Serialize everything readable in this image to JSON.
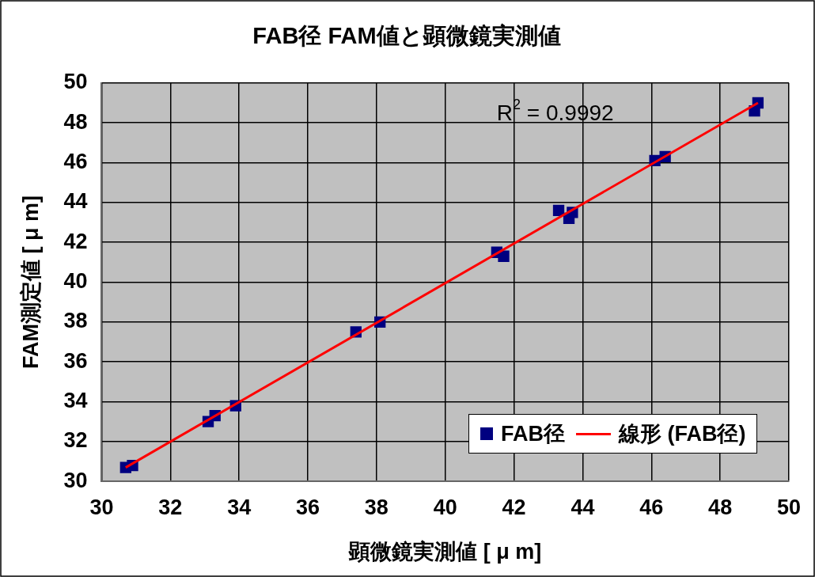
{
  "chart_data": {
    "type": "scatter",
    "title": "FAB径 FAM値と顕微鏡実測値",
    "xlabel": "顕微鏡実測値 [ μ m]",
    "ylabel": "FAM測定値 [ μ m]",
    "xlim": [
      30,
      50
    ],
    "ylim": [
      30,
      50
    ],
    "xticks": [
      30,
      32,
      34,
      36,
      38,
      40,
      42,
      44,
      46,
      48,
      50
    ],
    "yticks": [
      30,
      32,
      34,
      36,
      38,
      40,
      42,
      44,
      46,
      48,
      50
    ],
    "grid": true,
    "legend": "bottom right",
    "marker": "square",
    "annotations": [
      "R$^{2}$ = 0.9992"
    ],
    "series": [
      {
        "name": "FAB径",
        "color": "#000080",
        "x": [
          30.7,
          30.9,
          33.1,
          33.3,
          33.9,
          37.4,
          38.1,
          41.5,
          41.7,
          43.3,
          43.6,
          43.7,
          46.1,
          46.4,
          49.0,
          49.1
        ],
        "values": [
          30.7,
          30.8,
          33.0,
          33.3,
          33.8,
          37.5,
          38.0,
          41.5,
          41.3,
          43.6,
          43.2,
          43.5,
          46.1,
          46.3,
          48.6,
          49.0
        ]
      },
      {
        "name": "線形 (FAB径)",
        "type": "line",
        "color": "#ff0000",
        "marker": "none",
        "line_style": "solid",
        "x": [
          30.7,
          49.1
        ],
        "values": [
          30.7,
          49.0
        ]
      }
    ]
  }
}
